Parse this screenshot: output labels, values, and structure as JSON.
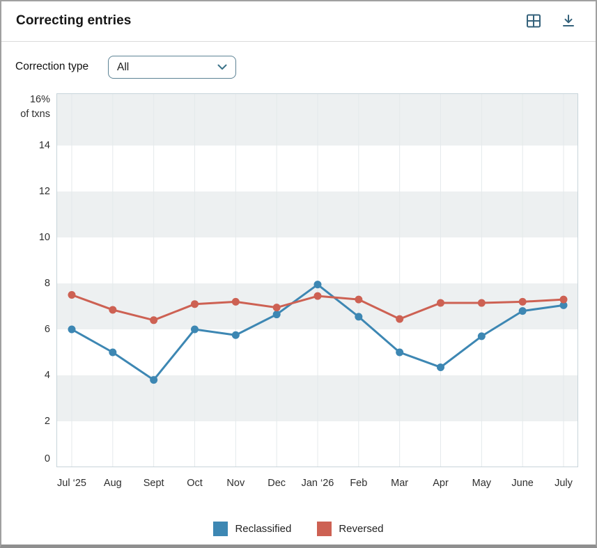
{
  "header": {
    "title": "Correcting entries"
  },
  "controls": {
    "label": "Correction type",
    "dropdown_value": "All"
  },
  "chart_data": {
    "type": "line",
    "x": [
      "Jul ‘25",
      "Aug",
      "Sept",
      "Oct",
      "Nov",
      "Dec",
      "Jan ‘26",
      "Feb",
      "Mar",
      "Apr",
      "May",
      "June",
      "July"
    ],
    "series": [
      {
        "name": "Reclassified",
        "color": "#3d87b3",
        "values": [
          6.0,
          5.0,
          3.8,
          6.0,
          5.75,
          6.65,
          7.95,
          6.55,
          5.0,
          4.35,
          5.7,
          6.8,
          7.05
        ]
      },
      {
        "name": "Reversed",
        "color": "#cd6153",
        "values": [
          7.5,
          6.85,
          6.4,
          7.1,
          7.2,
          6.95,
          7.45,
          7.3,
          6.45,
          7.15,
          7.15,
          7.2,
          7.3
        ]
      }
    ],
    "title": "Correcting entries",
    "xlabel": "",
    "ylabel": "% of txns",
    "ylim": [
      0,
      16
    ],
    "y_ticks": [
      0,
      2,
      4,
      6,
      8,
      10,
      12,
      14,
      16
    ],
    "y_top_label": "16%",
    "y_top_sublabel": "of txns",
    "band_color": "#edf0f1",
    "grid": true,
    "legend_position": "bottom"
  }
}
